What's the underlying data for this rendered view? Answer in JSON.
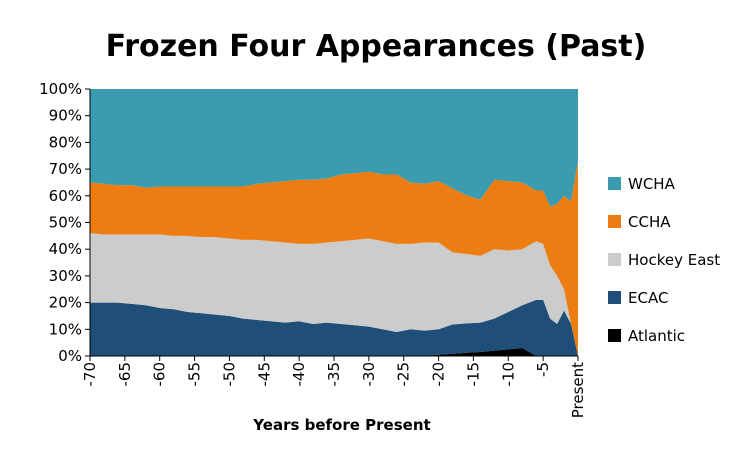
{
  "chart_data": {
    "type": "area",
    "stacked": "percent",
    "title": "Frozen Four Appearances (Past)",
    "xlabel": "Years before Present",
    "ylabel": "",
    "x": [
      -70,
      -68,
      -66,
      -64,
      -62,
      -60,
      -58,
      -56,
      -54,
      -52,
      -50,
      -48,
      -46,
      -44,
      -42,
      -40,
      -38,
      -36,
      -34,
      -32,
      -30,
      -28,
      -26,
      -24,
      -22,
      -20,
      -18,
      -16,
      -14,
      -12,
      -10,
      -8,
      -6,
      -5,
      -4,
      -3,
      -2,
      -1,
      0
    ],
    "x_tick_values": [
      -70,
      -65,
      -60,
      -55,
      -50,
      -45,
      -40,
      -35,
      -30,
      -25,
      -20,
      -15,
      -10,
      -5,
      0
    ],
    "x_tick_labels": [
      "-70",
      "-65",
      "-60",
      "-55",
      "-50",
      "-45",
      "-40",
      "-35",
      "-30",
      "-25",
      "-20",
      "-15",
      "-10",
      "-5",
      "Present"
    ],
    "xlim": [
      -70,
      0
    ],
    "ylim": [
      0,
      100
    ],
    "y_tick_values": [
      0,
      10,
      20,
      30,
      40,
      50,
      60,
      70,
      80,
      90,
      100
    ],
    "y_tick_labels": [
      "0%",
      "10%",
      "20%",
      "30%",
      "40%",
      "50%",
      "60%",
      "70%",
      "80%",
      "90%",
      "100%"
    ],
    "grid": false,
    "legend_position": "right",
    "series": [
      {
        "name": "Atlantic",
        "color": "#000000",
        "values": [
          0,
          0,
          0,
          0,
          0,
          0,
          0,
          0,
          0,
          0,
          0,
          0,
          0,
          0,
          0,
          0,
          0,
          0,
          0,
          0,
          0,
          0,
          0,
          0,
          0,
          0.5,
          0.8,
          1.2,
          1.5,
          2.0,
          2.5,
          3.0,
          0,
          0,
          0,
          0,
          0,
          0,
          0
        ]
      },
      {
        "name": "ECAC",
        "color": "#1f4e79",
        "values": [
          20,
          20,
          20,
          19.5,
          19,
          18,
          17.5,
          16.5,
          16,
          15.5,
          15,
          14,
          13.5,
          13,
          12.5,
          13,
          12,
          12.5,
          12,
          11.5,
          11,
          10,
          9,
          10,
          9.5,
          9.5,
          11,
          11,
          11,
          12,
          14,
          16,
          21,
          21,
          14,
          12,
          17,
          12,
          0
        ]
      },
      {
        "name": "Hockey East",
        "color": "#cccccc",
        "values": [
          26,
          25.5,
          25.5,
          26,
          26.5,
          27.5,
          27.5,
          28.5,
          28.5,
          29,
          29,
          29.5,
          30,
          30,
          30,
          29,
          30,
          30,
          31,
          32,
          33,
          33,
          33,
          32,
          33,
          32.5,
          27,
          26,
          25,
          26,
          23,
          21,
          22,
          21,
          20,
          18,
          8,
          0,
          0
        ]
      },
      {
        "name": "CCHA",
        "color": "#ed7d12",
        "values": [
          19,
          19,
          18.5,
          18.5,
          17.5,
          18,
          18.5,
          18.5,
          19,
          19,
          19.5,
          20,
          21,
          22,
          23,
          24,
          24,
          24,
          25,
          25,
          25,
          25,
          26,
          23,
          22,
          23,
          24,
          22,
          21,
          26,
          26,
          25,
          19,
          20,
          22,
          27,
          35,
          46,
          73
        ]
      },
      {
        "name": "WCHA",
        "color": "#3b9cb0",
        "values": [
          35,
          35.5,
          36,
          36,
          37,
          36.5,
          36.5,
          36.5,
          36.5,
          36.5,
          36.5,
          36.5,
          35.5,
          35,
          34.5,
          34,
          34,
          33.5,
          32,
          31.5,
          31,
          32,
          32,
          35,
          35.5,
          34.5,
          37.2,
          39.8,
          41.5,
          34,
          34.5,
          35,
          38,
          38,
          44,
          43,
          40,
          42,
          27
        ]
      }
    ]
  }
}
